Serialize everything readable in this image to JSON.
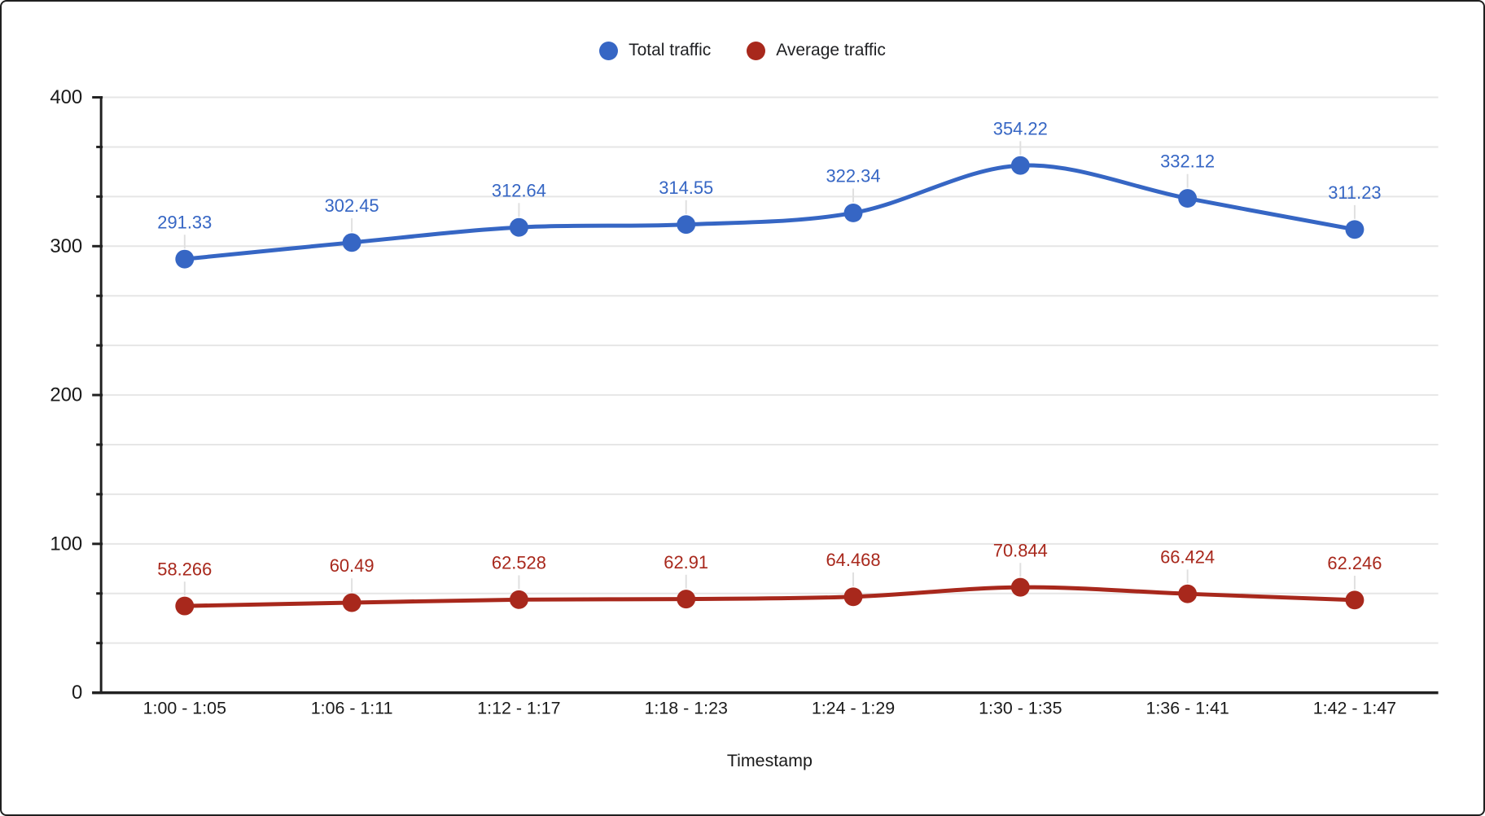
{
  "window": {
    "background": "#ffffff",
    "border_color": "#1f1f1f"
  },
  "chart_data": {
    "type": "line",
    "smooth": true,
    "grid": true,
    "legend_position": "top",
    "xlabel": "Timestamp",
    "ylabel": "",
    "title": "",
    "categories": [
      "1:00 - 1:05",
      "1:06 - 1:11",
      "1:12 - 1:17",
      "1:18 - 1:23",
      "1:24 - 1:29",
      "1:30 - 1:35",
      "1:36 - 1:41",
      "1:42 - 1:47"
    ],
    "series": [
      {
        "name": "Total traffic",
        "color": "#3666c4",
        "values": [
          291.33,
          302.45,
          312.64,
          314.55,
          322.34,
          354.22,
          332.12,
          311.23
        ],
        "point_labels": [
          "291.33",
          "302.45",
          "312.64",
          "314.55",
          "322.34",
          "354.22",
          "332.12",
          "311.23"
        ]
      },
      {
        "name": "Average traffic",
        "color": "#a8281c",
        "values": [
          58.266,
          60.49,
          62.528,
          62.91,
          64.468,
          70.844,
          66.424,
          62.246
        ],
        "point_labels": [
          "58.266",
          "60.49",
          "62.528",
          "62.91",
          "64.468",
          "70.844",
          "66.424",
          "62.246"
        ]
      }
    ],
    "y_axis": {
      "min": 0,
      "max": 400,
      "major_tick_labels": [
        "0",
        "100",
        "200",
        "300",
        "400"
      ],
      "major_step": 100,
      "minor_divisions_per_major": 3
    },
    "style": {
      "gridline_color": "#e6e6e6",
      "axis_color": "#212121",
      "tick_color": "#212121",
      "text_color": "#1a1a1a",
      "label_connector_color": "#e0e0e0"
    }
  }
}
